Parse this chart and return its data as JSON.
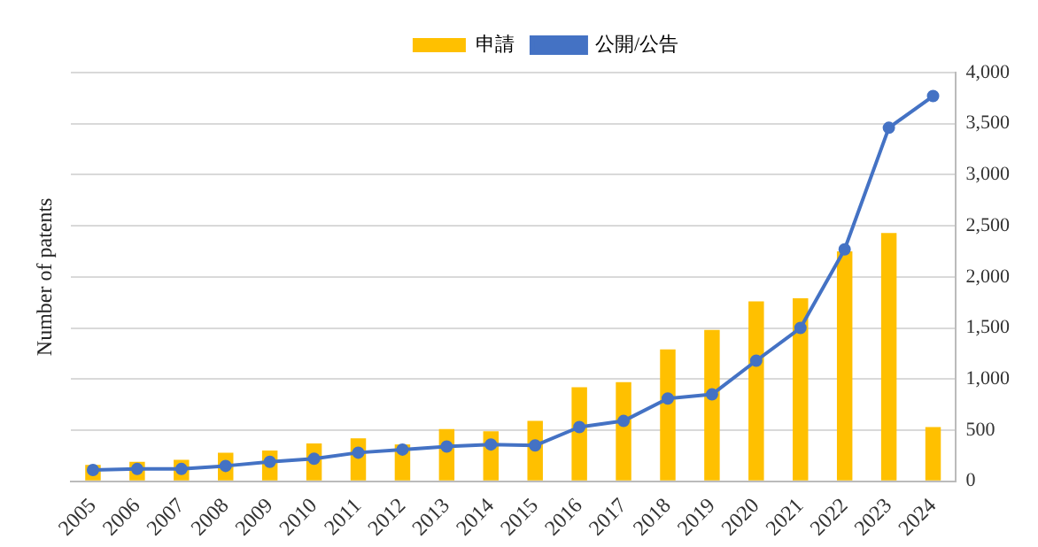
{
  "chart_data": {
    "type": "bar",
    "ylabel": "Number of patents",
    "categories": [
      "2005",
      "2006",
      "2007",
      "2008",
      "2009",
      "2010",
      "2011",
      "2012",
      "2013",
      "2014",
      "2015",
      "2016",
      "2017",
      "2018",
      "2019",
      "2020",
      "2021",
      "2022",
      "2023",
      "2024"
    ],
    "series": [
      {
        "name": "申請",
        "color": "#ffc000",
        "values": [
          160,
          190,
          210,
          280,
          300,
          370,
          420,
          360,
          510,
          490,
          590,
          920,
          970,
          1290,
          1480,
          1760,
          1790,
          2250,
          2430,
          530
        ]
      },
      {
        "name": "公開/公告",
        "type": "line",
        "color": "#4472c4",
        "values": [
          110,
          120,
          120,
          150,
          190,
          220,
          280,
          310,
          340,
          360,
          350,
          530,
          590,
          810,
          850,
          1180,
          1500,
          2270,
          3460,
          3770
        ]
      }
    ],
    "ylim": [
      0,
      4000
    ],
    "yticks": [
      0,
      500,
      {
        "value": 1000,
        "label": "1,000"
      },
      {
        "value": 1500,
        "label": "1,500"
      },
      {
        "value": 2000,
        "label": "2,000"
      },
      {
        "value": 2500,
        "label": "2,500"
      },
      {
        "value": 3000,
        "label": "3,000"
      },
      {
        "value": 3500,
        "label": "3,500"
      },
      {
        "value": 4000,
        "label": "4,000"
      }
    ],
    "grid": "y",
    "legend": "top",
    "marker": "circle"
  }
}
